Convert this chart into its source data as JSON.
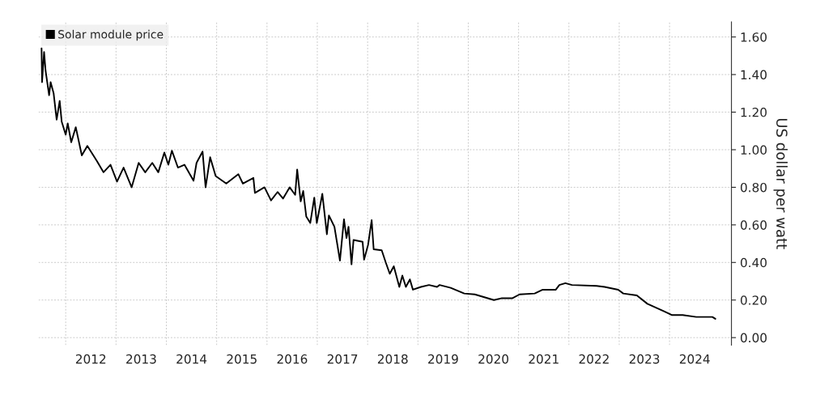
{
  "chart_data": {
    "type": "line",
    "ylabel": "US dollar per watt",
    "legend": "top left",
    "grid": true,
    "line_style": "solid",
    "marker": "none",
    "xlim": [
      2011.46,
      2025.23
    ],
    "ylim": [
      -0.04,
      1.68
    ],
    "xticks": [
      {
        "value": 2012,
        "label": null
      },
      {
        "value": 2013,
        "label": null
      },
      {
        "value": 2014,
        "label": null
      },
      {
        "value": 2015,
        "label": null
      },
      {
        "value": 2016,
        "label": null
      },
      {
        "value": 2017,
        "label": null
      },
      {
        "value": 2018,
        "label": null
      },
      {
        "value": 2019,
        "label": null
      },
      {
        "value": 2020,
        "label": null
      },
      {
        "value": 2021,
        "label": null
      },
      {
        "value": 2022,
        "label": null
      },
      {
        "value": 2023,
        "label": null
      },
      {
        "value": 2024,
        "label": null
      },
      {
        "value": 2012.5,
        "label": "2012"
      },
      {
        "value": 2013.5,
        "label": "2013"
      },
      {
        "value": 2014.5,
        "label": "2014"
      },
      {
        "value": 2015.5,
        "label": "2015"
      },
      {
        "value": 2016.5,
        "label": "2016"
      },
      {
        "value": 2017.5,
        "label": "2017"
      },
      {
        "value": 2018.5,
        "label": "2018"
      },
      {
        "value": 2019.5,
        "label": "2019"
      },
      {
        "value": 2020.5,
        "label": "2020"
      },
      {
        "value": 2021.5,
        "label": "2021"
      },
      {
        "value": 2022.5,
        "label": "2022"
      },
      {
        "value": 2023.5,
        "label": "2023"
      },
      {
        "value": 2024.5,
        "label": "2024"
      }
    ],
    "yticks": [
      {
        "value": 0,
        "label": "0.00"
      },
      {
        "value": 0.2,
        "label": "0.20"
      },
      {
        "value": 0.4,
        "label": "0.40"
      },
      {
        "value": 0.6,
        "label": "0.60"
      },
      {
        "value": 0.8,
        "label": "0.80"
      },
      {
        "value": 1.0,
        "label": "1.00"
      },
      {
        "value": 1.2,
        "label": "1.20"
      },
      {
        "value": 1.4,
        "label": "1.40"
      },
      {
        "value": 1.6,
        "label": "1.60"
      }
    ],
    "series": [
      {
        "name": "Solar module price",
        "color": "#000000",
        "x": [
          2011.52,
          2011.53,
          2011.57,
          2011.6,
          2011.67,
          2011.7,
          2011.76,
          2011.82,
          2011.88,
          2011.92,
          2012.0,
          2012.04,
          2012.11,
          2012.2,
          2012.32,
          2012.43,
          2012.62,
          2012.75,
          2012.89,
          2013.02,
          2013.15,
          2013.31,
          2013.45,
          2013.58,
          2013.72,
          2013.84,
          2013.96,
          2014.04,
          2014.11,
          2014.23,
          2014.36,
          2014.54,
          2014.6,
          2014.72,
          2014.78,
          2014.87,
          2014.98,
          2015.19,
          2015.43,
          2015.52,
          2015.73,
          2015.76,
          2015.95,
          2016.08,
          2016.21,
          2016.32,
          2016.45,
          2016.56,
          2016.6,
          2016.67,
          2016.72,
          2016.78,
          2016.86,
          2016.94,
          2016.99,
          2017.1,
          2017.19,
          2017.23,
          2017.34,
          2017.45,
          2017.53,
          2017.58,
          2017.62,
          2017.68,
          2017.72,
          2017.9,
          2017.93,
          2018.01,
          2018.08,
          2018.12,
          2018.28,
          2018.36,
          2018.44,
          2018.52,
          2018.63,
          2018.69,
          2018.76,
          2018.84,
          2018.9,
          2019.06,
          2019.22,
          2019.38,
          2019.43,
          2019.65,
          2019.92,
          2020.13,
          2020.51,
          2020.67,
          2020.88,
          2021.02,
          2021.32,
          2021.48,
          2021.74,
          2021.81,
          2021.93,
          2022.06,
          2022.55,
          2022.71,
          2022.98,
          2023.08,
          2023.35,
          2023.56,
          2023.89,
          2024.05,
          2024.26,
          2024.53,
          2024.85,
          2024.91
        ],
        "values": [
          1.54,
          1.36,
          1.52,
          1.42,
          1.29,
          1.36,
          1.3,
          1.16,
          1.26,
          1.15,
          1.08,
          1.14,
          1.04,
          1.12,
          0.97,
          1.02,
          0.94,
          0.88,
          0.92,
          0.83,
          0.905,
          0.8,
          0.93,
          0.88,
          0.93,
          0.88,
          0.985,
          0.92,
          0.995,
          0.905,
          0.92,
          0.835,
          0.93,
          0.99,
          0.8,
          0.96,
          0.86,
          0.82,
          0.87,
          0.82,
          0.85,
          0.77,
          0.8,
          0.73,
          0.775,
          0.74,
          0.8,
          0.76,
          0.895,
          0.725,
          0.78,
          0.645,
          0.61,
          0.745,
          0.61,
          0.765,
          0.55,
          0.65,
          0.59,
          0.41,
          0.63,
          0.53,
          0.59,
          0.39,
          0.52,
          0.51,
          0.415,
          0.495,
          0.625,
          0.47,
          0.465,
          0.4,
          0.34,
          0.38,
          0.27,
          0.33,
          0.27,
          0.31,
          0.255,
          0.27,
          0.28,
          0.27,
          0.28,
          0.265,
          0.235,
          0.23,
          0.2,
          0.21,
          0.21,
          0.23,
          0.235,
          0.255,
          0.255,
          0.28,
          0.29,
          0.28,
          0.275,
          0.27,
          0.255,
          0.235,
          0.225,
          0.18,
          0.14,
          0.12,
          0.12,
          0.11,
          0.11,
          0.1
        ]
      }
    ]
  }
}
